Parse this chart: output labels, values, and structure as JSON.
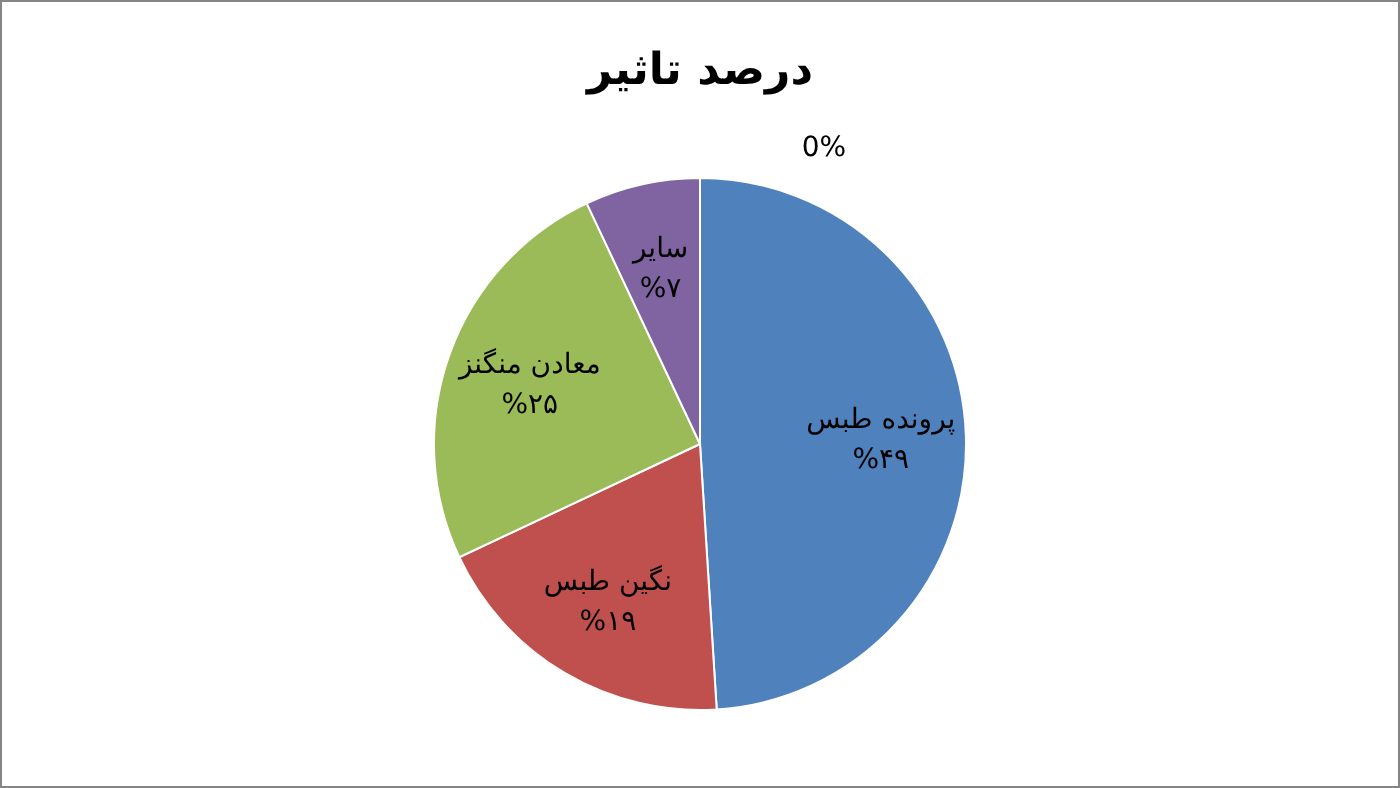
{
  "chart_data": {
    "type": "pie",
    "title": "درصد تاثیر",
    "categories": [
      "پرونده طبس",
      "نگین طبس",
      "معادن منگنز",
      "سایر",
      null
    ],
    "values": [
      49,
      19,
      25,
      7,
      0
    ],
    "colors": [
      "#4f81bd",
      "#c0504d",
      "#9bbb59",
      "#8064a2",
      "#4bacc6"
    ],
    "value_labels": [
      "%۴۹",
      "%۱۹",
      "%۲۵",
      "%۷",
      "0%"
    ]
  }
}
